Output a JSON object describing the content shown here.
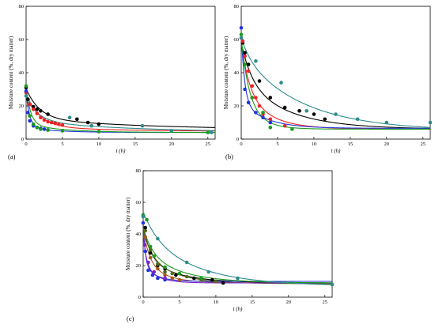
{
  "figure": {
    "panel_labels": [
      "(a)",
      "(b)",
      "(c)"
    ]
  },
  "colors": {
    "black": "#000000",
    "red": "#ee2222",
    "blue": "#2233dd",
    "green": "#1a9a1a",
    "teal": "#2e8b8b",
    "olive": "#556b1f",
    "brown": "#a55a20",
    "purple": "#7a22cc"
  },
  "chart_data": [
    {
      "type": "scatter",
      "title": "",
      "panel": "(a)",
      "xlabel": "t (h)",
      "ylabel": "Moisture content (%, dry matter)",
      "xlim": [
        0,
        26
      ],
      "ylim": [
        0,
        80
      ],
      "xticks": [
        0,
        5,
        10,
        15,
        20,
        25
      ],
      "yticks": [
        0,
        20,
        40,
        60,
        80
      ],
      "grid": false,
      "series": [
        {
          "color": "black",
          "points": [
            [
              0,
              31
            ],
            [
              0.25,
              24
            ],
            [
              0.5,
              21
            ],
            [
              1,
              19.5
            ],
            [
              1.5,
              18
            ],
            [
              2,
              17
            ],
            [
              3,
              15
            ],
            [
              7,
              12
            ],
            [
              8.5,
              10
            ],
            [
              10,
              9
            ]
          ],
          "model": {
            "me": 5.5,
            "a": 18,
            "k": 0.55,
            "b": 7,
            "k2": 0.06
          }
        },
        {
          "color": "red",
          "points": [
            [
              0,
              28
            ],
            [
              0.5,
              21
            ],
            [
              1,
              18
            ],
            [
              1.5,
              15.5
            ],
            [
              2,
              13
            ],
            [
              2.5,
              11.5
            ],
            [
              3,
              10.5
            ],
            [
              3.5,
              10
            ],
            [
              4,
              9.5
            ],
            [
              4.5,
              9
            ],
            [
              5,
              8.5
            ]
          ],
          "model": {
            "me": 4.5,
            "a": 20,
            "k": 0.55,
            "b": 3,
            "k2": 0.08
          }
        },
        {
          "color": "blue",
          "points": [
            [
              0,
              29
            ],
            [
              0.25,
              16
            ],
            [
              0.5,
              11
            ],
            [
              1,
              8
            ],
            [
              1.5,
              7
            ],
            [
              2,
              6.5
            ],
            [
              2.5,
              6
            ],
            [
              3,
              5.5
            ]
          ],
          "model": {
            "me": 4,
            "a": 21,
            "k": 2.0,
            "b": 3,
            "k2": 0.25
          }
        },
        {
          "color": "green",
          "points": [
            [
              0,
              32
            ],
            [
              0.5,
              14
            ],
            [
              1,
              9
            ],
            [
              1.5,
              7
            ],
            [
              2,
              6
            ],
            [
              3,
              5.5
            ],
            [
              5,
              5
            ],
            [
              10,
              4.5
            ],
            [
              25,
              4
            ]
          ],
          "model": {
            "me": 4,
            "a": 22,
            "k": 1.6,
            "b": 5,
            "k2": 0.2
          }
        },
        {
          "color": "teal",
          "points": [
            [
              0,
              26
            ],
            [
              6,
              13
            ],
            [
              9,
              8
            ],
            [
              16,
              8
            ],
            [
              20,
              5
            ],
            [
              25.5,
              4
            ]
          ],
          "model": {
            "me": 4,
            "a": 14,
            "k": 0.6,
            "b": 7,
            "k2": 0.07
          }
        }
      ]
    },
    {
      "type": "scatter",
      "title": "",
      "panel": "(b)",
      "xlabel": "t (h)",
      "ylabel": "Moisture content (%, dry matter)",
      "xlim": [
        0,
        26
      ],
      "ylim": [
        0,
        80
      ],
      "xticks": [
        0,
        5,
        10,
        15,
        20,
        25
      ],
      "yticks": [
        0,
        20,
        40,
        60,
        80
      ],
      "grid": false,
      "series": [
        {
          "color": "black",
          "points": [
            [
              0.2,
              58
            ],
            [
              0.5,
              52
            ],
            [
              1,
              45
            ],
            [
              2.5,
              35
            ],
            [
              4,
              25
            ],
            [
              6,
              19
            ],
            [
              8,
              17
            ],
            [
              10,
              15
            ],
            [
              11.5,
              12
            ]
          ],
          "model": {
            "me": 6,
            "a": 22,
            "k": 0.7,
            "b": 30,
            "k2": 0.16
          }
        },
        {
          "color": "red",
          "points": [
            [
              0.2,
              59
            ],
            [
              0.5,
              50
            ],
            [
              1,
              41
            ],
            [
              1.5,
              32
            ],
            [
              2,
              25
            ],
            [
              2.5,
              20
            ],
            [
              3,
              15
            ],
            [
              4,
              12
            ],
            [
              6,
              8
            ]
          ],
          "model": {
            "me": 6,
            "a": 28,
            "k": 0.9,
            "b": 24,
            "k2": 0.28
          }
        },
        {
          "color": "blue",
          "points": [
            [
              0,
              67
            ],
            [
              0.5,
              30
            ],
            [
              1,
              22
            ],
            [
              2,
              16
            ],
            [
              3,
              13
            ],
            [
              4,
              10
            ]
          ],
          "model": {
            "me": 6.5,
            "a": 42,
            "k": 2.2,
            "b": 16,
            "k2": 0.3
          }
        },
        {
          "color": "green",
          "points": [
            [
              0,
              63
            ],
            [
              0.5,
              45
            ],
            [
              1.5,
              25
            ],
            [
              3,
              16
            ],
            [
              4,
              7
            ],
            [
              7,
              6
            ]
          ],
          "model": {
            "me": 6,
            "a": 35,
            "k": 1.0,
            "b": 20,
            "k2": 0.45
          }
        },
        {
          "color": "teal",
          "points": [
            [
              0,
              61
            ],
            [
              2,
              47
            ],
            [
              5.5,
              34
            ],
            [
              9,
              17
            ],
            [
              13,
              15
            ],
            [
              16,
              12
            ],
            [
              20,
              10
            ],
            [
              26,
              10
            ]
          ],
          "model": {
            "me": 5,
            "a": 10,
            "k": 0.8,
            "b": 46,
            "k2": 0.12
          }
        }
      ]
    },
    {
      "type": "scatter",
      "title": "",
      "panel": "(c)",
      "xlabel": "t (h)",
      "ylabel": "Moisture content (%, dry matter)",
      "xlim": [
        0,
        26
      ],
      "ylim": [
        0,
        80
      ],
      "xticks": [
        0,
        5,
        10,
        15,
        20,
        25
      ],
      "yticks": [
        0,
        20,
        40,
        60,
        80
      ],
      "grid": false,
      "series": [
        {
          "color": "black",
          "points": [
            [
              0.3,
              44
            ],
            [
              1,
              28
            ],
            [
              2,
              20
            ],
            [
              3,
              18
            ],
            [
              4.5,
              14
            ],
            [
              7,
              12
            ],
            [
              9.5,
              11
            ],
            [
              11,
              9
            ]
          ],
          "model": {
            "me": 9,
            "a": 20,
            "k": 1.0,
            "b": 16,
            "k2": 0.22
          }
        },
        {
          "color": "olive",
          "points": [
            [
              0.3,
              42
            ],
            [
              1,
              30
            ],
            [
              2,
              21
            ],
            [
              3,
              16
            ],
            [
              4,
              15
            ],
            [
              6,
              13
            ],
            [
              8,
              11
            ],
            [
              10,
              10
            ]
          ],
          "model": {
            "me": 8.5,
            "a": 15,
            "k": 0.9,
            "b": 19,
            "k2": 0.25
          }
        },
        {
          "color": "brown",
          "points": [
            [
              0.3,
              38
            ],
            [
              1,
              25
            ],
            [
              2,
              18
            ],
            [
              3,
              14
            ],
            [
              4,
              12
            ],
            [
              5,
              11
            ]
          ],
          "model": {
            "me": 9,
            "a": 20,
            "k": 1.2,
            "b": 14,
            "k2": 0.35
          }
        },
        {
          "color": "blue",
          "points": [
            [
              0,
              47
            ],
            [
              0.3,
              29
            ],
            [
              0.7,
              17
            ],
            [
              1.3,
              14
            ],
            [
              2,
              12
            ],
            [
              3,
              11
            ]
          ],
          "model": {
            "me": 10,
            "a": 26,
            "k": 3.5,
            "b": 11,
            "k2": 0.6
          }
        },
        {
          "color": "purple",
          "points": [
            [
              0.2,
              33
            ],
            [
              0.7,
              22
            ],
            [
              1.5,
              16
            ],
            [
              3,
              12
            ]
          ],
          "model": {
            "me": 9,
            "a": 20,
            "k": 2.5,
            "b": 12,
            "k2": 0.55
          }
        },
        {
          "color": "green",
          "points": [
            [
              0,
              52
            ],
            [
              0.5,
              49
            ],
            [
              1,
              32
            ],
            [
              1.5,
              26
            ],
            [
              3,
              19
            ],
            [
              5,
              15
            ],
            [
              8,
              12
            ]
          ],
          "model": {
            "me": 9,
            "a": 15,
            "k": 0.8,
            "b": 20,
            "k2": 0.2
          }
        },
        {
          "color": "teal",
          "points": [
            [
              0,
              51
            ],
            [
              2,
              37
            ],
            [
              6,
              22
            ],
            [
              9,
              16
            ],
            [
              13,
              12
            ],
            [
              26,
              8
            ]
          ],
          "model": {
            "me": 7,
            "a": 14,
            "k": 0.5,
            "b": 33,
            "k2": 0.14
          }
        }
      ]
    }
  ]
}
